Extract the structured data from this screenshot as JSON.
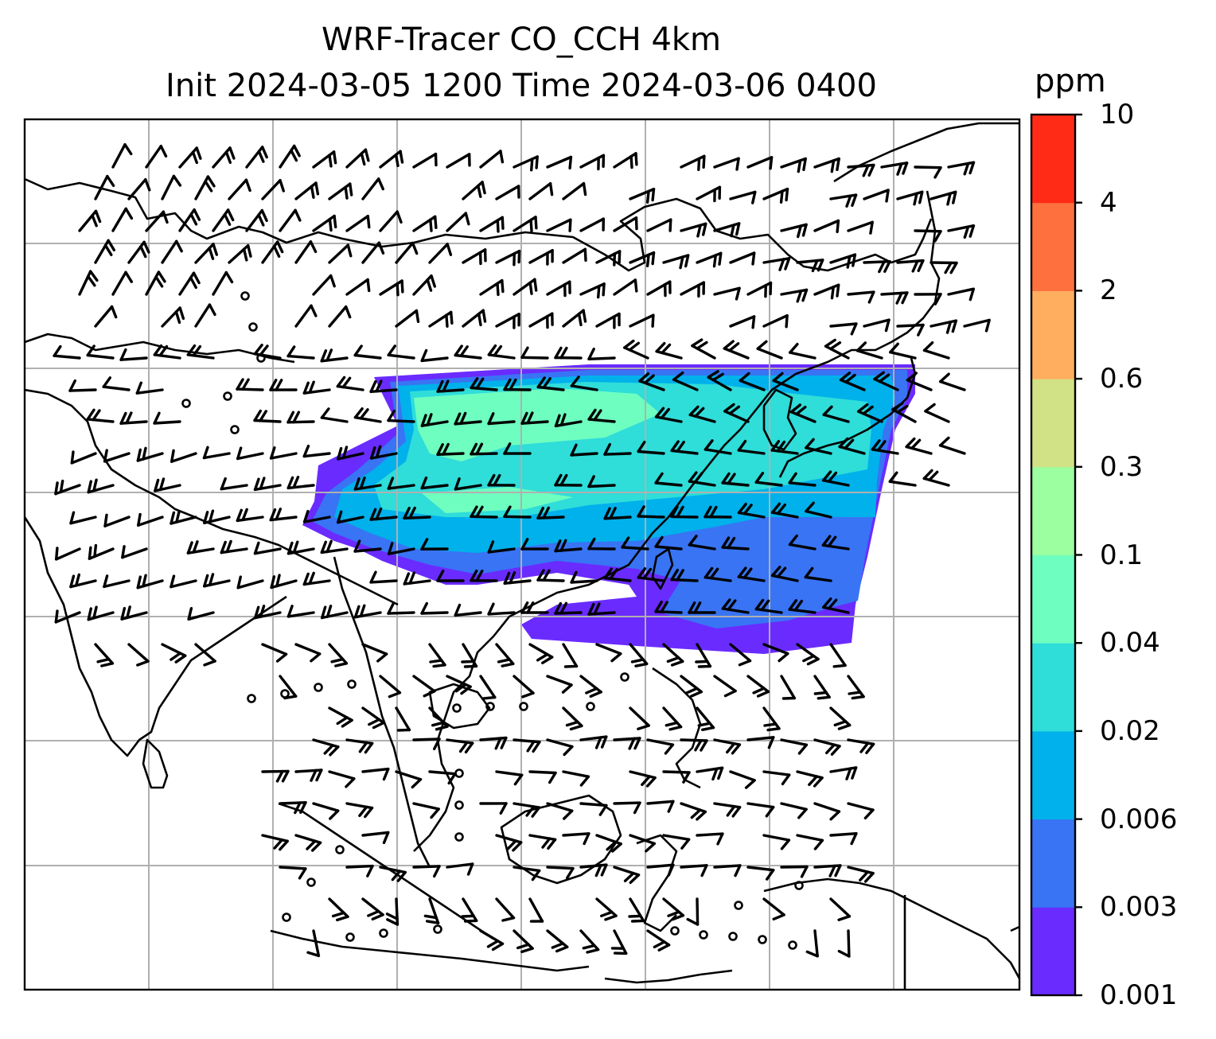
{
  "title": {
    "line1": "WRF-Tracer CO_CCH 4km",
    "line2": "Init 2024-03-05 1200 Time 2024-03-06 0400"
  },
  "colorbar": {
    "unit": "ppm",
    "levels": [
      "0.001",
      "0.003",
      "0.006",
      "0.02",
      "0.04",
      "0.1",
      "0.3",
      "0.6",
      "2",
      "4",
      "10"
    ],
    "colors": [
      "#6a2bff",
      "#3874f4",
      "#00b1eb",
      "#2fddd9",
      "#6effc0",
      "#9cffa0",
      "#d1e286",
      "#ffad5f",
      "#ff703f",
      "#ff2b17"
    ]
  },
  "map": {
    "coastline_color": "#000000",
    "gridline_color": "#b0b0b0",
    "barb_color": "#000000"
  }
}
